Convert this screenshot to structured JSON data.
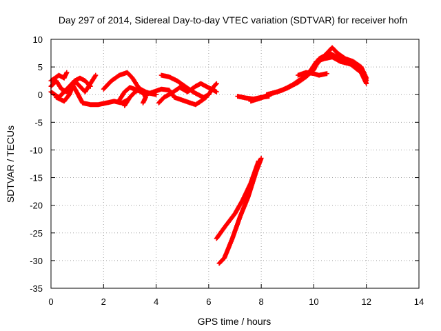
{
  "chart_data": {
    "type": "scatter",
    "title": "Day 297 of 2014, Sidereal Day-to-day VTEC variation (SDTVAR) for receiver hofn",
    "xlabel": "GPS time / hours",
    "ylabel": "SDTVAR / TECUs",
    "xlim": [
      0,
      14
    ],
    "ylim": [
      -35,
      10
    ],
    "xticks": [
      0,
      2,
      4,
      6,
      8,
      10,
      12,
      14
    ],
    "yticks": [
      10,
      5,
      0,
      -5,
      -10,
      -15,
      -20,
      -25,
      -30,
      -35
    ],
    "grid": true,
    "marker": "plus",
    "color": "#ff0000",
    "series": [
      {
        "name": "hofn",
        "tracks": [
          [
            [
              0.0,
              1.5
            ],
            [
              0.2,
              2.5
            ],
            [
              0.4,
              1.0
            ],
            [
              0.6,
              0.5
            ],
            [
              0.8,
              2.0
            ],
            [
              1.0,
              0.3
            ],
            [
              1.2,
              -1.5
            ],
            [
              1.5,
              -1.8
            ],
            [
              1.8,
              -1.8
            ],
            [
              2.1,
              -1.5
            ],
            [
              2.4,
              -1.2
            ],
            [
              2.7,
              -1.5
            ],
            [
              2.9,
              -1.0
            ]
          ],
          [
            [
              0.0,
              0.5
            ],
            [
              0.3,
              -0.5
            ],
            [
              0.5,
              0.5
            ],
            [
              0.7,
              1.5
            ],
            [
              0.9,
              2.5
            ],
            [
              1.1,
              3.0
            ],
            [
              1.3,
              2.5
            ],
            [
              1.5,
              1.5
            ]
          ],
          [
            [
              0.2,
              -0.5
            ],
            [
              0.5,
              -1.2
            ],
            [
              0.7,
              0.0
            ],
            [
              0.9,
              2.5
            ],
            [
              1.1,
              1.5
            ],
            [
              1.3,
              0.5
            ],
            [
              1.5,
              2.0
            ],
            [
              1.7,
              3.5
            ]
          ],
          [
            [
              0.0,
              2.5
            ],
            [
              0.3,
              3.5
            ],
            [
              0.5,
              3.0
            ],
            [
              0.6,
              4.0
            ]
          ],
          [
            [
              2.0,
              1.0
            ],
            [
              2.3,
              2.5
            ],
            [
              2.6,
              3.5
            ],
            [
              2.9,
              4.0
            ],
            [
              3.1,
              3.0
            ],
            [
              3.3,
              1.5
            ],
            [
              3.5,
              0.5
            ],
            [
              3.6,
              -0.5
            ],
            [
              3.5,
              -1.5
            ]
          ],
          [
            [
              2.8,
              -2.0
            ],
            [
              3.0,
              -0.5
            ],
            [
              3.2,
              0.5
            ],
            [
              3.4,
              1.0
            ],
            [
              3.6,
              0.5
            ],
            [
              3.8,
              0.2
            ],
            [
              4.0,
              0.0
            ]
          ],
          [
            [
              2.6,
              -1.0
            ],
            [
              2.8,
              0.5
            ],
            [
              3.0,
              1.3
            ],
            [
              3.3,
              0.8
            ],
            [
              3.6,
              0.0
            ],
            [
              3.9,
              0.5
            ],
            [
              4.2,
              1.0
            ],
            [
              4.5,
              0.8
            ],
            [
              4.7,
              -0.5
            ]
          ],
          [
            [
              4.2,
              3.5
            ],
            [
              4.5,
              3.2
            ],
            [
              4.8,
              2.5
            ],
            [
              5.1,
              1.5
            ],
            [
              5.4,
              0.5
            ],
            [
              5.6,
              0.0
            ],
            [
              5.8,
              -0.5
            ],
            [
              6.0,
              0.0
            ],
            [
              6.2,
              1.5
            ],
            [
              6.3,
              2.0
            ]
          ],
          [
            [
              4.1,
              -1.5
            ],
            [
              4.3,
              -0.5
            ],
            [
              4.6,
              0.3
            ],
            [
              4.9,
              1.3
            ],
            [
              5.2,
              0.5
            ],
            [
              5.5,
              1.5
            ],
            [
              5.7,
              2.0
            ],
            [
              5.9,
              1.5
            ],
            [
              6.1,
              1.0
            ],
            [
              6.3,
              0.5
            ]
          ],
          [
            [
              4.7,
              -0.5
            ],
            [
              5.0,
              -1.0
            ],
            [
              5.3,
              -1.5
            ],
            [
              5.5,
              -1.8
            ],
            [
              5.7,
              -1.2
            ],
            [
              5.9,
              -0.5
            ]
          ],
          [
            [
              7.1,
              -0.3
            ],
            [
              7.4,
              -0.6
            ],
            [
              7.7,
              -0.8
            ],
            [
              8.0,
              -0.5
            ],
            [
              8.3,
              -0.3
            ]
          ],
          [
            [
              7.6,
              -1.2
            ],
            [
              8.0,
              -0.6
            ],
            [
              8.4,
              0.2
            ],
            [
              8.8,
              0.8
            ],
            [
              9.2,
              1.8
            ],
            [
              9.5,
              2.8
            ],
            [
              9.8,
              3.8
            ],
            [
              10.0,
              4.8
            ],
            [
              10.2,
              6.0
            ],
            [
              10.5,
              7.5
            ],
            [
              10.7,
              8.5
            ],
            [
              10.9,
              7.5
            ],
            [
              11.2,
              6.5
            ],
            [
              11.5,
              6.0
            ],
            [
              11.8,
              5.0
            ],
            [
              12.0,
              3.0
            ]
          ],
          [
            [
              8.2,
              0.0
            ],
            [
              8.6,
              0.5
            ],
            [
              9.0,
              1.2
            ],
            [
              9.4,
              2.2
            ],
            [
              9.7,
              3.2
            ],
            [
              10.0,
              4.5
            ],
            [
              10.2,
              6.5
            ],
            [
              10.4,
              7.0
            ],
            [
              10.6,
              7.5
            ],
            [
              10.8,
              7.0
            ],
            [
              11.0,
              6.5
            ],
            [
              11.3,
              6.0
            ],
            [
              11.6,
              5.0
            ],
            [
              11.9,
              4.0
            ],
            [
              12.0,
              2.5
            ]
          ],
          [
            [
              9.3,
              2.0
            ],
            [
              9.6,
              3.0
            ],
            [
              9.9,
              4.5
            ],
            [
              10.1,
              6.0
            ],
            [
              10.4,
              6.5
            ],
            [
              10.7,
              6.8
            ],
            [
              11.0,
              6.0
            ],
            [
              11.4,
              5.5
            ],
            [
              11.8,
              4.0
            ],
            [
              12.0,
              2.0
            ]
          ],
          [
            [
              9.4,
              3.5
            ],
            [
              9.7,
              4.0
            ],
            [
              10.0,
              3.8
            ],
            [
              10.2,
              3.5
            ],
            [
              10.5,
              3.8
            ]
          ],
          [
            [
              6.3,
              -26.0
            ],
            [
              6.6,
              -24.0
            ],
            [
              7.0,
              -21.5
            ],
            [
              7.3,
              -19.0
            ],
            [
              7.6,
              -16.0
            ],
            [
              7.9,
              -12.0
            ]
          ],
          [
            [
              6.4,
              -30.5
            ],
            [
              6.6,
              -29.5
            ],
            [
              6.9,
              -26.0
            ],
            [
              7.2,
              -22.0
            ],
            [
              7.5,
              -18.5
            ],
            [
              7.8,
              -14.0
            ],
            [
              8.0,
              -11.5
            ]
          ]
        ]
      }
    ]
  }
}
